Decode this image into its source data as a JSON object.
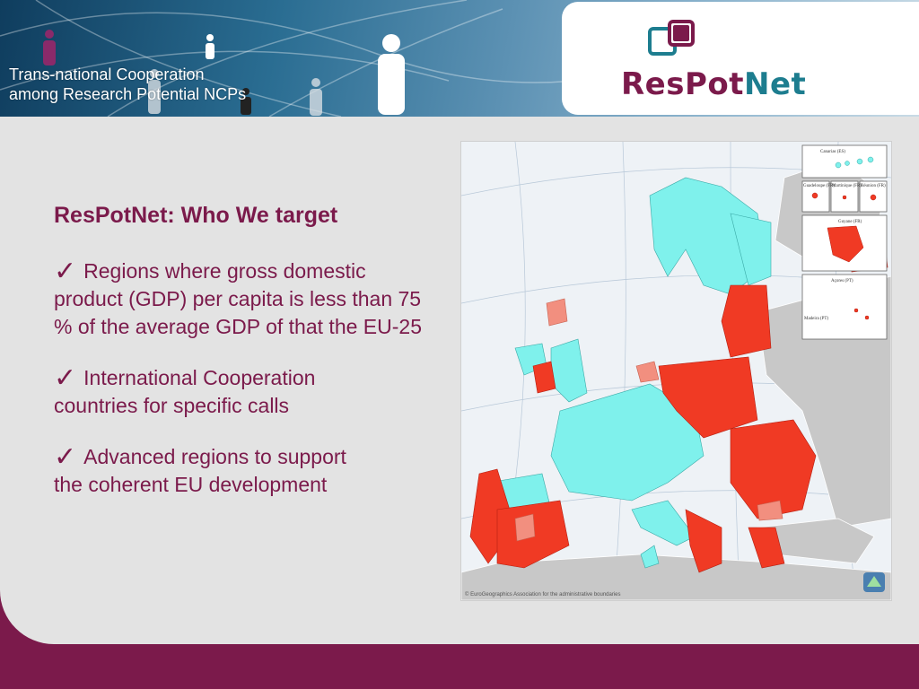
{
  "header": {
    "tagline_line1": "Trans-national Cooperation",
    "tagline_line2": "among Research Potential NCPs",
    "logo_part1": "ResPot",
    "logo_part2": "Net"
  },
  "content": {
    "heading": "ResPotNet: Who We target",
    "check_glyph": "✓",
    "bullets": [
      {
        "first": "Regions where gross domestic",
        "rest": "product (GDP) per capita is less than 75 % of the average GDP of that the EU-25"
      },
      {
        "first": "International Cooperation",
        "rest": "countries for specific calls"
      },
      {
        "first": "Advanced regions to support",
        "rest": "the coherent EU development"
      }
    ]
  },
  "map": {
    "copyright": "© EuroGeographics Association for the administrative boundaries",
    "insets": [
      "Canarias (ES)",
      "Guadeloupe (FR)",
      "Martinique (FR)",
      "Réunion (FR)",
      "Guyane (FR)",
      "Açores (PT)",
      "Madeira (PT)"
    ]
  },
  "colors": {
    "brand_purple": "#7b1a4b",
    "brand_teal": "#1d7d8f",
    "map_cyan": "#7ff1ec",
    "map_red": "#f03a24",
    "map_salmon": "#f28f7f",
    "map_grey": "#c8c8c8"
  }
}
